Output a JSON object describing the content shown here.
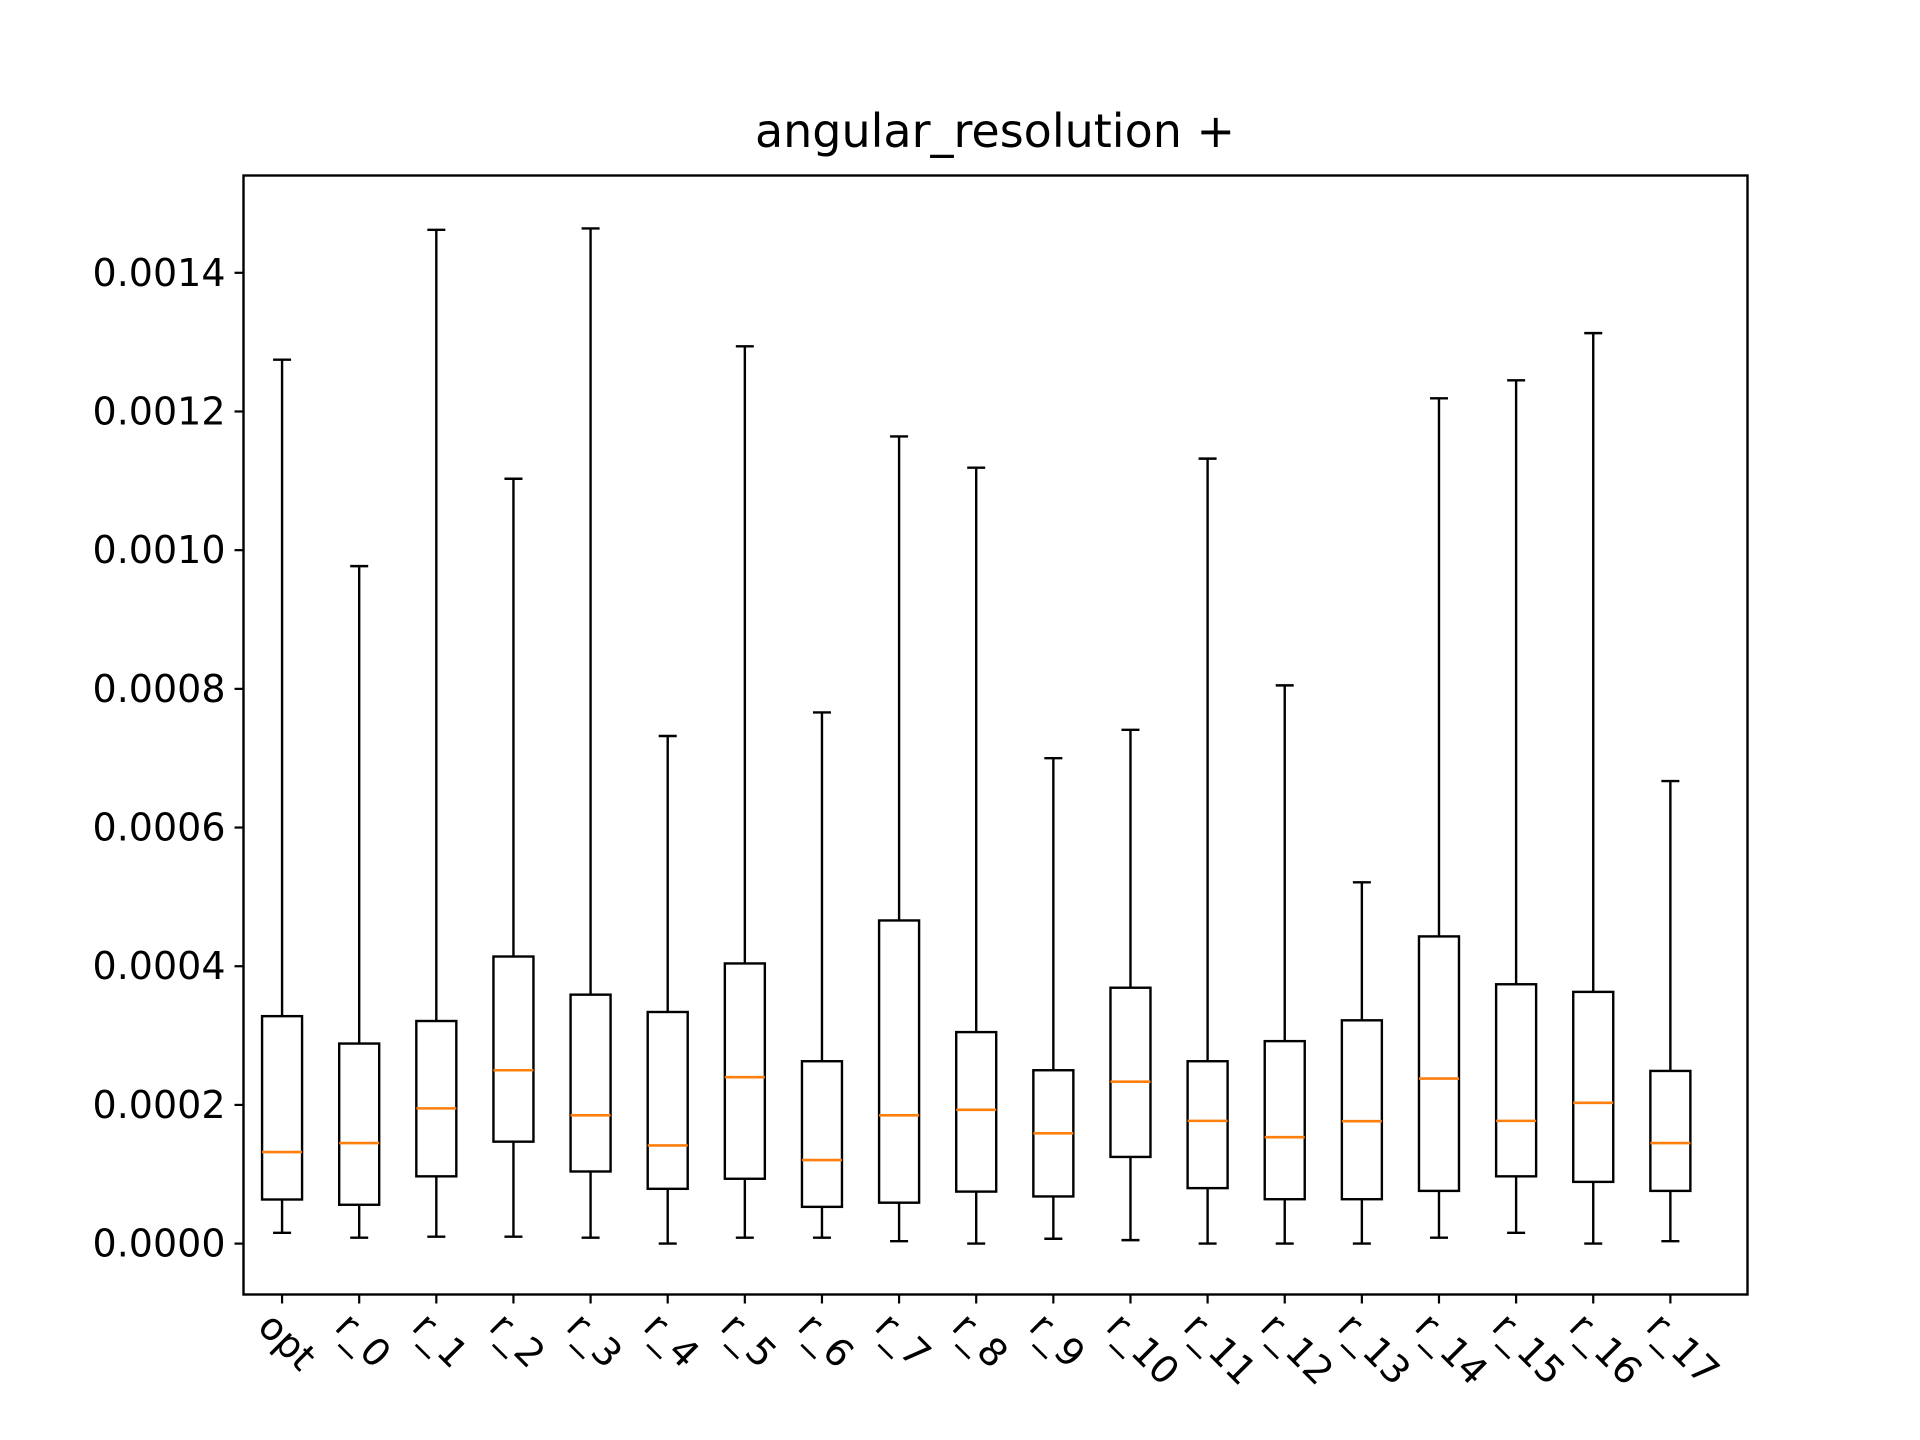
{
  "chart_data": {
    "type": "box",
    "title": "angular_resolution +",
    "xlabel": "",
    "ylabel": "",
    "ylim": [
      -7.34e-05,
      0.0015403
    ],
    "yticks": [
      "0.0000",
      "0.0002",
      "0.0004",
      "0.0006",
      "0.0008",
      "0.0010",
      "0.0012",
      "0.0014"
    ],
    "ytick_values": [
      0,
      0.0002,
      0.0004,
      0.0006,
      0.0008,
      0.001,
      0.0012,
      0.0014
    ],
    "categories": [
      "opt",
      "r_0",
      "r_1",
      "r_2",
      "r_3",
      "r_4",
      "r_5",
      "r_6",
      "r_7",
      "r_8",
      "r_9",
      "r_10",
      "r_11",
      "r_12",
      "r_13",
      "r_14",
      "r_15",
      "r_16",
      "r_17"
    ],
    "boxes": [
      {
        "label": "opt",
        "whislo": 1.55e-05,
        "q1": 6.36e-05,
        "med": 0.000132,
        "q3": 0.000328,
        "whishi": 0.0012747
      },
      {
        "label": "r_0",
        "whislo": 8.5e-06,
        "q1": 5.6e-05,
        "med": 0.000145,
        "q3": 0.0002885,
        "whishi": 0.000977
      },
      {
        "label": "r_1",
        "whislo": 1e-05,
        "q1": 9.7e-05,
        "med": 0.000195,
        "q3": 0.000321,
        "whishi": 0.001462
      },
      {
        "label": "r_2",
        "whislo": 1e-05,
        "q1": 0.000147,
        "med": 0.00025,
        "q3": 0.000414,
        "whishi": 0.001103
      },
      {
        "label": "r_3",
        "whislo": 8.5e-06,
        "q1": 0.000104,
        "med": 0.000185,
        "q3": 0.000359,
        "whishi": 0.001464
      },
      {
        "label": "r_4",
        "whislo": 0.0,
        "q1": 7.9e-05,
        "med": 0.0001415,
        "q3": 0.000334,
        "whishi": 0.000732
      },
      {
        "label": "r_5",
        "whislo": 8.5e-06,
        "q1": 9.35e-05,
        "med": 0.00024,
        "q3": 0.000404,
        "whishi": 0.001294
      },
      {
        "label": "r_6",
        "whislo": 8.5e-06,
        "q1": 5.3e-05,
        "med": 0.0001205,
        "q3": 0.000263,
        "whishi": 0.000766
      },
      {
        "label": "r_7",
        "whislo": 3.5e-06,
        "q1": 5.9e-05,
        "med": 0.000185,
        "q3": 0.000466,
        "whishi": 0.001164
      },
      {
        "label": "r_8",
        "whislo": 0.0,
        "q1": 7.5e-05,
        "med": 0.000193,
        "q3": 0.000305,
        "whishi": 0.001119
      },
      {
        "label": "r_9",
        "whislo": 7e-06,
        "q1": 6.8e-05,
        "med": 0.000159,
        "q3": 0.00025,
        "whishi": 0.0007
      },
      {
        "label": "r_10",
        "whislo": 5e-06,
        "q1": 0.000125,
        "med": 0.0002335,
        "q3": 0.000369,
        "whishi": 0.000741
      },
      {
        "label": "r_11",
        "whislo": 0.0,
        "q1": 8e-05,
        "med": 0.000177,
        "q3": 0.000263,
        "whishi": 0.001132
      },
      {
        "label": "r_12",
        "whislo": 0.0,
        "q1": 6.4e-05,
        "med": 0.0001535,
        "q3": 0.000292,
        "whishi": 0.000805
      },
      {
        "label": "r_13",
        "whislo": 0.0,
        "q1": 6.4e-05,
        "med": 0.0001765,
        "q3": 0.000322,
        "whishi": 0.000521
      },
      {
        "label": "r_14",
        "whislo": 8.5e-06,
        "q1": 7.6e-05,
        "med": 0.000238,
        "q3": 0.000443,
        "whishi": 0.001219
      },
      {
        "label": "r_15",
        "whislo": 1.55e-05,
        "q1": 9.7e-05,
        "med": 0.000177,
        "q3": 0.000374,
        "whishi": 0.001245
      },
      {
        "label": "r_16",
        "whislo": 0.0,
        "q1": 8.9e-05,
        "med": 0.000203,
        "q3": 0.000363,
        "whishi": 0.001313
      },
      {
        "label": "r_17",
        "whislo": 3.5e-06,
        "q1": 7.6e-05,
        "med": 0.000145,
        "q3": 0.000249,
        "whishi": 0.000667
      }
    ],
    "colors": {
      "box": "#000000",
      "median": "#ff7f0e",
      "whisker": "#000000"
    },
    "grid": false,
    "legend": "none"
  }
}
